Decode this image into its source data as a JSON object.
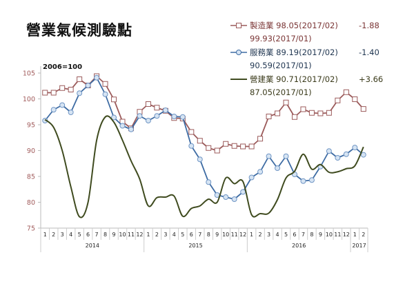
{
  "chart_data": {
    "type": "line",
    "title": "營業氣候測驗點",
    "base_note": "2006=100",
    "ylim": [
      75,
      105
    ],
    "yticks": [
      "75",
      "80",
      "85",
      "90",
      "95",
      "100",
      "105"
    ],
    "grid": false,
    "legend_position": "top-right",
    "x_month_labels": [
      "1",
      "2",
      "3",
      "4",
      "5",
      "6",
      "7",
      "8",
      "9",
      "10",
      "11",
      "12",
      "1",
      "2",
      "3",
      "4",
      "5",
      "6",
      "7",
      "8",
      "9",
      "10",
      "11",
      "12",
      "1",
      "2",
      "3",
      "4",
      "5",
      "6",
      "7",
      "8",
      "9",
      "10",
      "11",
      "12",
      "1",
      "2"
    ],
    "x_year_groups": [
      {
        "label": "2014",
        "months": 12
      },
      {
        "label": "2015",
        "months": 12
      },
      {
        "label": "2016",
        "months": 12
      },
      {
        "label": "2017",
        "months": 2
      }
    ],
    "series": [
      {
        "name": "製造業",
        "color": "#9b5a5a",
        "marker": "square",
        "smooth": false,
        "values": [
          101.2,
          101.2,
          102.1,
          101.8,
          103.8,
          102.6,
          104.4,
          102.9,
          99.9,
          95.6,
          94.3,
          97.5,
          99.0,
          98.3,
          97.7,
          96.3,
          96.2,
          93.6,
          91.9,
          90.5,
          90.0,
          91.3,
          90.9,
          90.8,
          90.8,
          92.3,
          96.6,
          97.2,
          99.3,
          96.5,
          98.0,
          97.3,
          97.2,
          97.3,
          99.7,
          101.3,
          99.93,
          98.05
        ],
        "legend_text": "製造業 98.05(2017/02)",
        "legend_prev": "99.93(2017/01)",
        "legend_change": "-1.88"
      },
      {
        "name": "服務業",
        "color": "#3d6ba3",
        "marker": "circle",
        "smooth": false,
        "values": [
          95.8,
          97.9,
          98.8,
          97.4,
          101.1,
          102.6,
          104.1,
          100.9,
          96.4,
          94.8,
          94.1,
          96.7,
          95.8,
          96.7,
          97.8,
          96.6,
          96.5,
          90.9,
          88.3,
          83.9,
          81.4,
          81.0,
          80.6,
          82.0,
          84.8,
          85.9,
          88.9,
          86.6,
          88.9,
          85.4,
          84.1,
          84.3,
          86.9,
          89.9,
          88.6,
          89.3,
          90.59,
          89.19
        ],
        "legend_text": "服務業 89.19(2017/02)",
        "legend_prev": "90.59(2017/01)",
        "legend_change": "-1.40"
      },
      {
        "name": "營建業",
        "color": "#3f4b1f",
        "marker": "none",
        "smooth": true,
        "values": [
          96.0,
          94.5,
          90.0,
          83.0,
          77.2,
          80.0,
          92.0,
          96.5,
          95.5,
          92.0,
          88.0,
          84.5,
          79.3,
          80.9,
          81.0,
          81.2,
          77.3,
          78.8,
          79.3,
          80.6,
          80.0,
          84.7,
          83.6,
          84.0,
          77.6,
          77.8,
          77.9,
          80.5,
          84.7,
          86.0,
          89.3,
          86.4,
          87.3,
          85.8,
          85.9,
          86.5,
          87.05,
          90.71
        ],
        "legend_text": "營建業 90.71(2017/02)",
        "legend_prev": "87.05(2017/01)",
        "legend_change": "+3.66"
      }
    ]
  }
}
